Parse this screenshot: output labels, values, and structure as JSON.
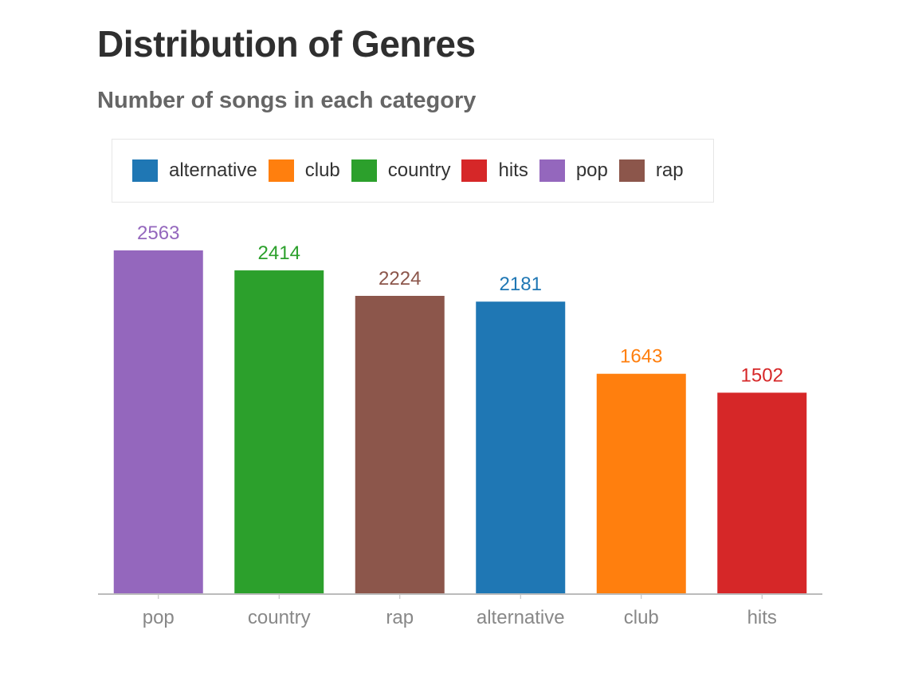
{
  "title": "Distribution of Genres",
  "subtitle": "Number of songs in each category",
  "legend": [
    {
      "label": "alternative",
      "color": "#1f77b4"
    },
    {
      "label": "club",
      "color": "#ff7f0e"
    },
    {
      "label": "country",
      "color": "#2ca02c"
    },
    {
      "label": "hits",
      "color": "#d62728"
    },
    {
      "label": "pop",
      "color": "#9467bd"
    },
    {
      "label": "rap",
      "color": "#8c564b"
    }
  ],
  "chart_data": {
    "type": "bar",
    "title": "Distribution of Genres",
    "subtitle": "Number of songs in each category",
    "categories": [
      "pop",
      "country",
      "rap",
      "alternative",
      "club",
      "hits"
    ],
    "values": [
      2563,
      2414,
      2224,
      2181,
      1643,
      1502
    ],
    "colors": [
      "#9467bd",
      "#2ca02c",
      "#8c564b",
      "#1f77b4",
      "#ff7f0e",
      "#d62728"
    ],
    "xlabel": "",
    "ylabel": "",
    "ylim": [
      0,
      2563
    ],
    "grid": false,
    "legend_position": "top-left"
  }
}
